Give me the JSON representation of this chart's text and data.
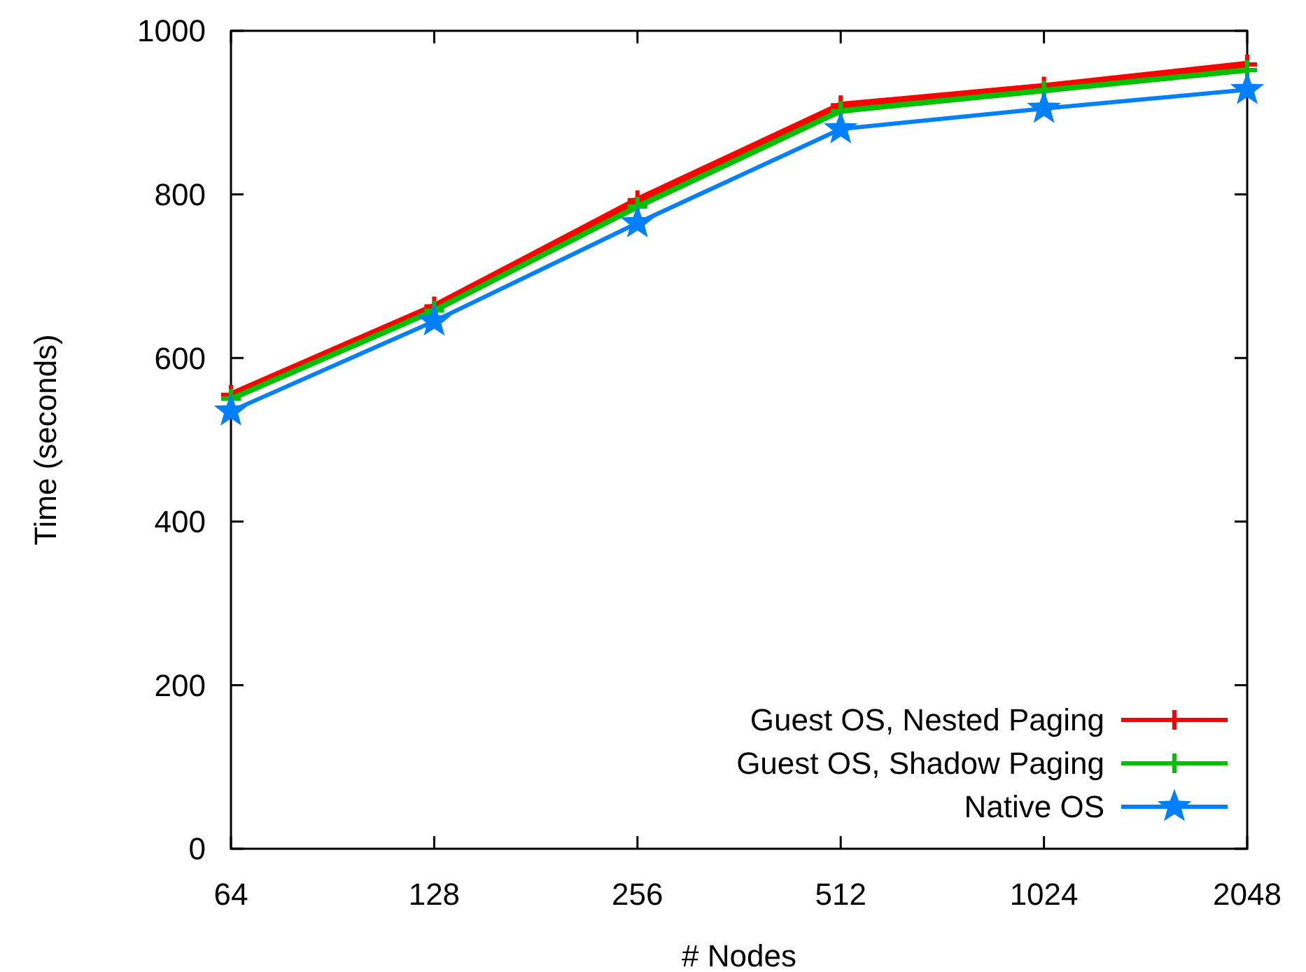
{
  "chart_data": {
    "type": "line",
    "xlabel": "# Nodes",
    "ylabel": "Time (seconds)",
    "categories": [
      "64",
      "128",
      "256",
      "512",
      "1024",
      "2048"
    ],
    "ylim": [
      0,
      1000
    ],
    "yticks": [
      0,
      200,
      400,
      600,
      800,
      1000
    ],
    "grid": false,
    "legend": "bottom right",
    "line_style": "solid",
    "series": [
      {
        "name": "Guest OS, Nested Paging",
        "color": "#ff0000",
        "marker": "cross",
        "values": [
          555,
          663,
          793,
          909,
          932,
          959
        ]
      },
      {
        "name": "Guest OS, Shadow Paging",
        "color": "#00c000",
        "marker": "cross",
        "values": [
          550,
          658,
          785,
          902,
          927,
          952
        ]
      },
      {
        "name": "Native OS",
        "color": "#0080ff",
        "marker": "star",
        "values": [
          535,
          645,
          765,
          880,
          905,
          928
        ]
      }
    ]
  }
}
